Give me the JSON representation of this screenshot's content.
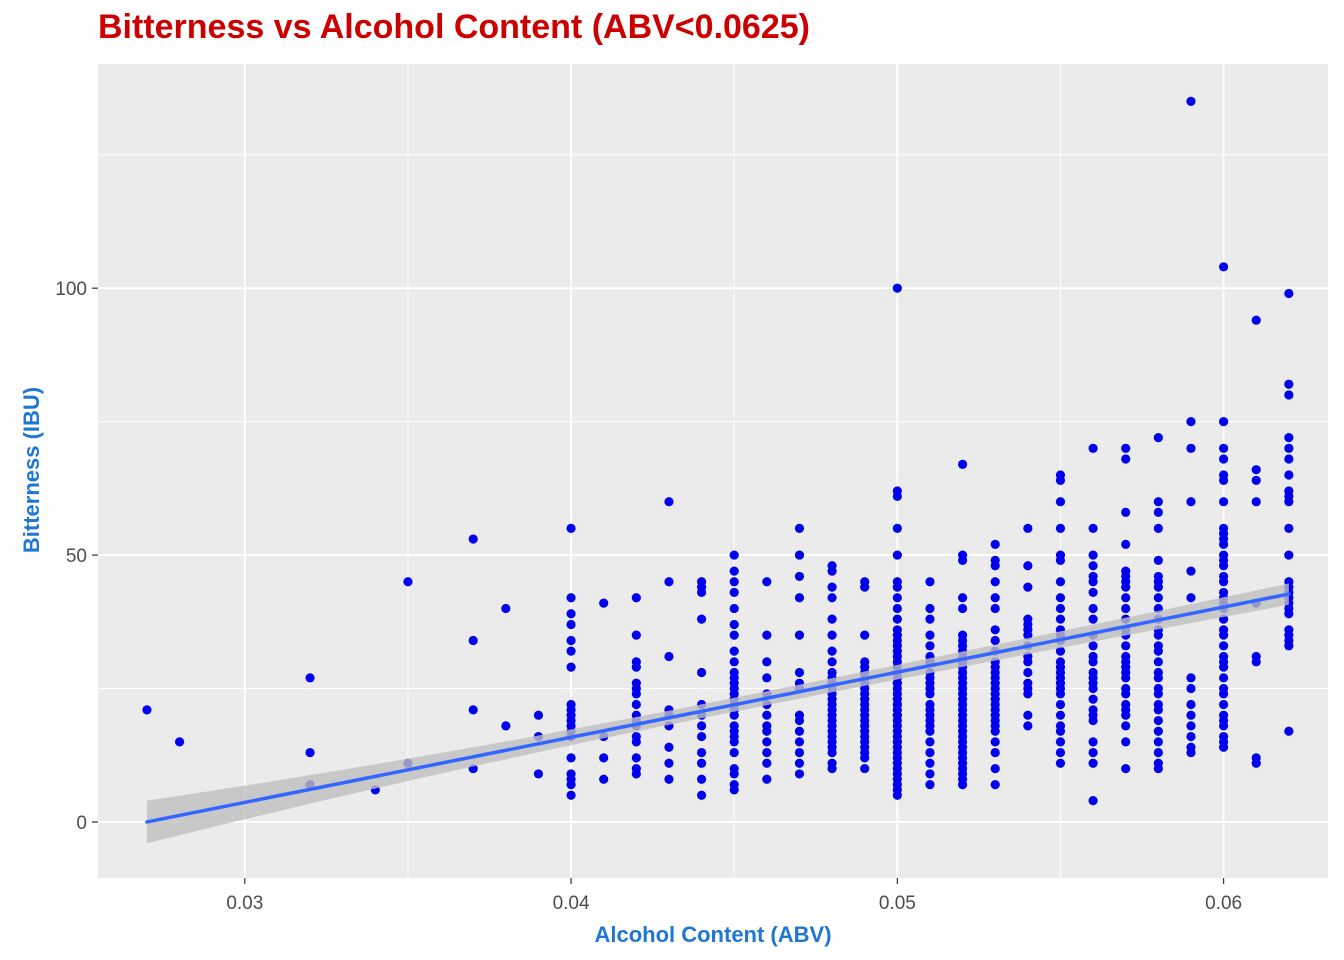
{
  "chart_data": {
    "type": "scatter",
    "title": "Bitterness vs Alcohol Content (ABV<0.0625)",
    "xlabel": "Alcohol Content (ABV)",
    "ylabel": "Bitterness (IBU)",
    "xlim": [
      0.0255,
      0.0632
    ],
    "ylim": [
      -10.5,
      142
    ],
    "x_ticks": [
      0.03,
      0.04,
      0.05,
      0.06
    ],
    "x_tick_labels": [
      "0.03",
      "0.04",
      "0.05",
      "0.06"
    ],
    "y_ticks": [
      0,
      50,
      100
    ],
    "y_tick_labels": [
      "0",
      "50",
      "100"
    ],
    "grid": true,
    "legend": "none",
    "colors": {
      "points": "#0000ee",
      "trend": "#3366ff",
      "ribbon": "#bfbfbf",
      "panel": "#ebebeb",
      "grid": "#ffffff",
      "title": "#cc0000",
      "axis_title": "#1f77d4"
    },
    "trend_line": {
      "x": [
        0.027,
        0.062
      ],
      "y": [
        0.0,
        42.7
      ],
      "ci_halfwidth": [
        4.0,
        2.0
      ]
    },
    "series": [
      {
        "x": [
          0.027,
          0.028,
          0.032,
          0.032,
          0.032,
          0.034,
          0.035,
          0.035,
          0.037,
          0.037,
          0.037,
          0.037,
          0.038,
          0.038,
          0.039,
          0.039,
          0.039,
          0.04,
          0.04,
          0.04,
          0.04,
          0.04,
          0.04,
          0.04,
          0.04,
          0.04,
          0.04,
          0.04,
          0.04,
          0.04,
          0.04,
          0.04,
          0.04,
          0.04,
          0.04,
          0.04,
          0.041,
          0.041,
          0.041,
          0.041,
          0.042,
          0.042,
          0.042,
          0.042,
          0.042,
          0.042,
          0.042,
          0.042,
          0.042,
          0.042,
          0.042,
          0.042,
          0.042,
          0.042,
          0.042,
          0.042,
          0.043,
          0.043,
          0.043,
          0.043,
          0.043,
          0.043,
          0.043,
          0.043,
          0.043,
          0.044,
          0.044,
          0.044,
          0.044,
          0.044,
          0.044,
          0.044,
          0.044,
          0.044,
          0.044,
          0.044,
          0.044,
          0.044,
          0.045,
          0.045,
          0.045,
          0.045,
          0.045,
          0.045,
          0.045,
          0.045,
          0.045,
          0.045,
          0.045,
          0.045,
          0.045,
          0.045,
          0.045,
          0.045,
          0.045,
          0.045,
          0.045,
          0.045,
          0.045,
          0.045,
          0.045,
          0.045,
          0.045,
          0.045,
          0.045,
          0.046,
          0.046,
          0.046,
          0.046,
          0.046,
          0.046,
          0.046,
          0.046,
          0.046,
          0.046,
          0.046,
          0.046,
          0.046,
          0.047,
          0.047,
          0.047,
          0.047,
          0.047,
          0.047,
          0.047,
          0.047,
          0.047,
          0.047,
          0.047,
          0.047,
          0.047,
          0.047,
          0.047,
          0.048,
          0.048,
          0.048,
          0.048,
          0.048,
          0.048,
          0.048,
          0.048,
          0.048,
          0.048,
          0.048,
          0.048,
          0.048,
          0.048,
          0.048,
          0.048,
          0.048,
          0.048,
          0.048,
          0.048,
          0.048,
          0.048,
          0.048,
          0.048,
          0.048,
          0.048,
          0.049,
          0.049,
          0.049,
          0.049,
          0.049,
          0.049,
          0.049,
          0.049,
          0.049,
          0.049,
          0.049,
          0.049,
          0.049,
          0.049,
          0.049,
          0.049,
          0.049,
          0.049,
          0.049,
          0.049,
          0.049,
          0.049,
          0.049,
          0.05,
          0.05,
          0.05,
          0.05,
          0.05,
          0.05,
          0.05,
          0.05,
          0.05,
          0.05,
          0.05,
          0.05,
          0.05,
          0.05,
          0.05,
          0.05,
          0.05,
          0.05,
          0.05,
          0.05,
          0.05,
          0.05,
          0.05,
          0.05,
          0.05,
          0.05,
          0.05,
          0.05,
          0.05,
          0.05,
          0.05,
          0.05,
          0.05,
          0.05,
          0.05,
          0.05,
          0.05,
          0.05,
          0.05,
          0.05,
          0.05,
          0.05,
          0.05,
          0.05,
          0.05,
          0.05,
          0.051,
          0.051,
          0.051,
          0.051,
          0.051,
          0.051,
          0.051,
          0.051,
          0.051,
          0.051,
          0.051,
          0.051,
          0.051,
          0.051,
          0.051,
          0.051,
          0.051,
          0.051,
          0.051,
          0.051,
          0.051,
          0.051,
          0.051,
          0.052,
          0.052,
          0.052,
          0.052,
          0.052,
          0.052,
          0.052,
          0.052,
          0.052,
          0.052,
          0.052,
          0.052,
          0.052,
          0.052,
          0.052,
          0.052,
          0.052,
          0.052,
          0.052,
          0.052,
          0.052,
          0.052,
          0.052,
          0.052,
          0.052,
          0.052,
          0.052,
          0.052,
          0.052,
          0.052,
          0.052,
          0.052,
          0.052,
          0.052,
          0.053,
          0.053,
          0.053,
          0.053,
          0.053,
          0.053,
          0.053,
          0.053,
          0.053,
          0.053,
          0.053,
          0.053,
          0.053,
          0.053,
          0.053,
          0.053,
          0.053,
          0.053,
          0.053,
          0.053,
          0.053,
          0.053,
          0.053,
          0.053,
          0.053,
          0.053,
          0.053,
          0.054,
          0.054,
          0.054,
          0.054,
          0.054,
          0.054,
          0.054,
          0.054,
          0.054,
          0.054,
          0.054,
          0.054,
          0.054,
          0.054,
          0.054,
          0.054,
          0.055,
          0.055,
          0.055,
          0.055,
          0.055,
          0.055,
          0.055,
          0.055,
          0.055,
          0.055,
          0.055,
          0.055,
          0.055,
          0.055,
          0.055,
          0.055,
          0.055,
          0.055,
          0.055,
          0.055,
          0.055,
          0.055,
          0.055,
          0.055,
          0.055,
          0.055,
          0.055,
          0.055,
          0.056,
          0.056,
          0.056,
          0.056,
          0.056,
          0.056,
          0.056,
          0.056,
          0.056,
          0.056,
          0.056,
          0.056,
          0.056,
          0.056,
          0.056,
          0.056,
          0.056,
          0.056,
          0.056,
          0.056,
          0.056,
          0.056,
          0.056,
          0.056,
          0.056,
          0.057,
          0.057,
          0.057,
          0.057,
          0.057,
          0.057,
          0.057,
          0.057,
          0.057,
          0.057,
          0.057,
          0.057,
          0.057,
          0.057,
          0.057,
          0.057,
          0.057,
          0.057,
          0.057,
          0.057,
          0.057,
          0.057,
          0.057,
          0.057,
          0.057,
          0.057,
          0.057,
          0.058,
          0.058,
          0.058,
          0.058,
          0.058,
          0.058,
          0.058,
          0.058,
          0.058,
          0.058,
          0.058,
          0.058,
          0.058,
          0.058,
          0.058,
          0.058,
          0.058,
          0.058,
          0.058,
          0.058,
          0.058,
          0.058,
          0.058,
          0.058,
          0.058,
          0.058,
          0.058,
          0.058,
          0.059,
          0.059,
          0.059,
          0.059,
          0.059,
          0.059,
          0.059,
          0.059,
          0.059,
          0.059,
          0.059,
          0.059,
          0.059,
          0.059,
          0.06,
          0.06,
          0.06,
          0.06,
          0.06,
          0.06,
          0.06,
          0.06,
          0.06,
          0.06,
          0.06,
          0.06,
          0.06,
          0.06,
          0.06,
          0.06,
          0.06,
          0.06,
          0.06,
          0.06,
          0.06,
          0.06,
          0.06,
          0.06,
          0.06,
          0.06,
          0.06,
          0.06,
          0.06,
          0.06,
          0.06,
          0.06,
          0.06,
          0.06,
          0.06,
          0.06,
          0.06,
          0.061,
          0.061,
          0.061,
          0.061,
          0.061,
          0.061,
          0.061,
          0.061,
          0.061,
          0.062,
          0.062,
          0.062,
          0.062,
          0.062,
          0.062,
          0.062,
          0.062,
          0.062,
          0.062,
          0.062,
          0.062,
          0.062,
          0.062,
          0.062,
          0.062,
          0.062,
          0.062,
          0.062,
          0.062,
          0.062,
          0.062,
          0.062,
          0.062
        ],
        "y": [
          21,
          15,
          27,
          13,
          7,
          6,
          45,
          11,
          53,
          34,
          21,
          10,
          40,
          18,
          20,
          16,
          9,
          55,
          42,
          39,
          37,
          34,
          32,
          29,
          22,
          20,
          18,
          17,
          16,
          12,
          9,
          8,
          7,
          5,
          21,
          19,
          41,
          16,
          12,
          8,
          42,
          35,
          30,
          26,
          25,
          24,
          22,
          20,
          19,
          18,
          16,
          15,
          12,
          10,
          9,
          29,
          60,
          45,
          21,
          20,
          18,
          14,
          11,
          8,
          31,
          45,
          44,
          43,
          38,
          28,
          22,
          20,
          18,
          16,
          13,
          11,
          8,
          5,
          50,
          47,
          45,
          43,
          40,
          37,
          35,
          32,
          30,
          28,
          27,
          26,
          25,
          24,
          23,
          22,
          21,
          20,
          18,
          17,
          16,
          15,
          13,
          10,
          9,
          7,
          6,
          45,
          35,
          30,
          27,
          24,
          22,
          20,
          18,
          17,
          15,
          13,
          11,
          8,
          55,
          50,
          46,
          42,
          35,
          28,
          25,
          20,
          19,
          17,
          15,
          13,
          11,
          9,
          26,
          48,
          47,
          44,
          42,
          38,
          35,
          32,
          30,
          28,
          27,
          26,
          25,
          24,
          23,
          22,
          21,
          20,
          19,
          18,
          17,
          16,
          15,
          14,
          13,
          11,
          10,
          45,
          44,
          35,
          30,
          29,
          28,
          27,
          26,
          25,
          24,
          23,
          22,
          21,
          20,
          19,
          18,
          17,
          16,
          15,
          14,
          13,
          12,
          10,
          100,
          62,
          61,
          55,
          50,
          45,
          44,
          40,
          38,
          35,
          33,
          31,
          30,
          29,
          28,
          27,
          26,
          25,
          24,
          23,
          22,
          21,
          20,
          19,
          18,
          17,
          16,
          15,
          14,
          13,
          12,
          11,
          10,
          9,
          8,
          7,
          6,
          5,
          34,
          32,
          36,
          26,
          22,
          20,
          15,
          42,
          45,
          40,
          38,
          35,
          33,
          31,
          30,
          28,
          27,
          26,
          25,
          24,
          22,
          21,
          20,
          19,
          18,
          17,
          15,
          13,
          11,
          9,
          7,
          67,
          50,
          49,
          42,
          40,
          35,
          34,
          33,
          32,
          31,
          30,
          29,
          28,
          27,
          26,
          25,
          24,
          23,
          22,
          21,
          20,
          19,
          18,
          17,
          16,
          15,
          14,
          13,
          12,
          11,
          10,
          9,
          8,
          7,
          52,
          49,
          48,
          45,
          42,
          40,
          36,
          34,
          32,
          30,
          29,
          28,
          27,
          26,
          25,
          24,
          23,
          22,
          21,
          20,
          19,
          18,
          17,
          15,
          13,
          10,
          7,
          55,
          48,
          44,
          38,
          37,
          36,
          35,
          33,
          31,
          30,
          28,
          26,
          25,
          24,
          20,
          18,
          65,
          64,
          60,
          55,
          50,
          49,
          45,
          42,
          40,
          38,
          36,
          35,
          34,
          32,
          30,
          29,
          28,
          27,
          26,
          25,
          24,
          22,
          20,
          18,
          17,
          15,
          13,
          11,
          70,
          55,
          50,
          48,
          46,
          45,
          43,
          40,
          38,
          35,
          33,
          31,
          30,
          28,
          27,
          26,
          25,
          23,
          21,
          20,
          19,
          15,
          13,
          11,
          4,
          70,
          68,
          58,
          52,
          47,
          46,
          45,
          44,
          42,
          40,
          38,
          36,
          35,
          33,
          31,
          30,
          29,
          28,
          27,
          25,
          24,
          22,
          21,
          20,
          18,
          15,
          10,
          72,
          60,
          58,
          55,
          49,
          46,
          45,
          44,
          42,
          40,
          38,
          36,
          35,
          33,
          32,
          30,
          28,
          27,
          25,
          24,
          22,
          21,
          19,
          17,
          15,
          13,
          11,
          10,
          135,
          75,
          70,
          60,
          47,
          42,
          27,
          25,
          22,
          20,
          18,
          16,
          14,
          13,
          104,
          75,
          70,
          68,
          65,
          64,
          60,
          55,
          54,
          53,
          52,
          50,
          49,
          48,
          46,
          45,
          43,
          42,
          41,
          40,
          38,
          36,
          35,
          33,
          31,
          30,
          29,
          27,
          25,
          24,
          22,
          20,
          19,
          18,
          16,
          15,
          14,
          94,
          66,
          64,
          60,
          41,
          31,
          30,
          12,
          11,
          99,
          82,
          80,
          72,
          70,
          68,
          65,
          62,
          61,
          60,
          55,
          50,
          45,
          43,
          42,
          41,
          40,
          35,
          34,
          33,
          17,
          44,
          39,
          36
        ]
      }
    ]
  }
}
